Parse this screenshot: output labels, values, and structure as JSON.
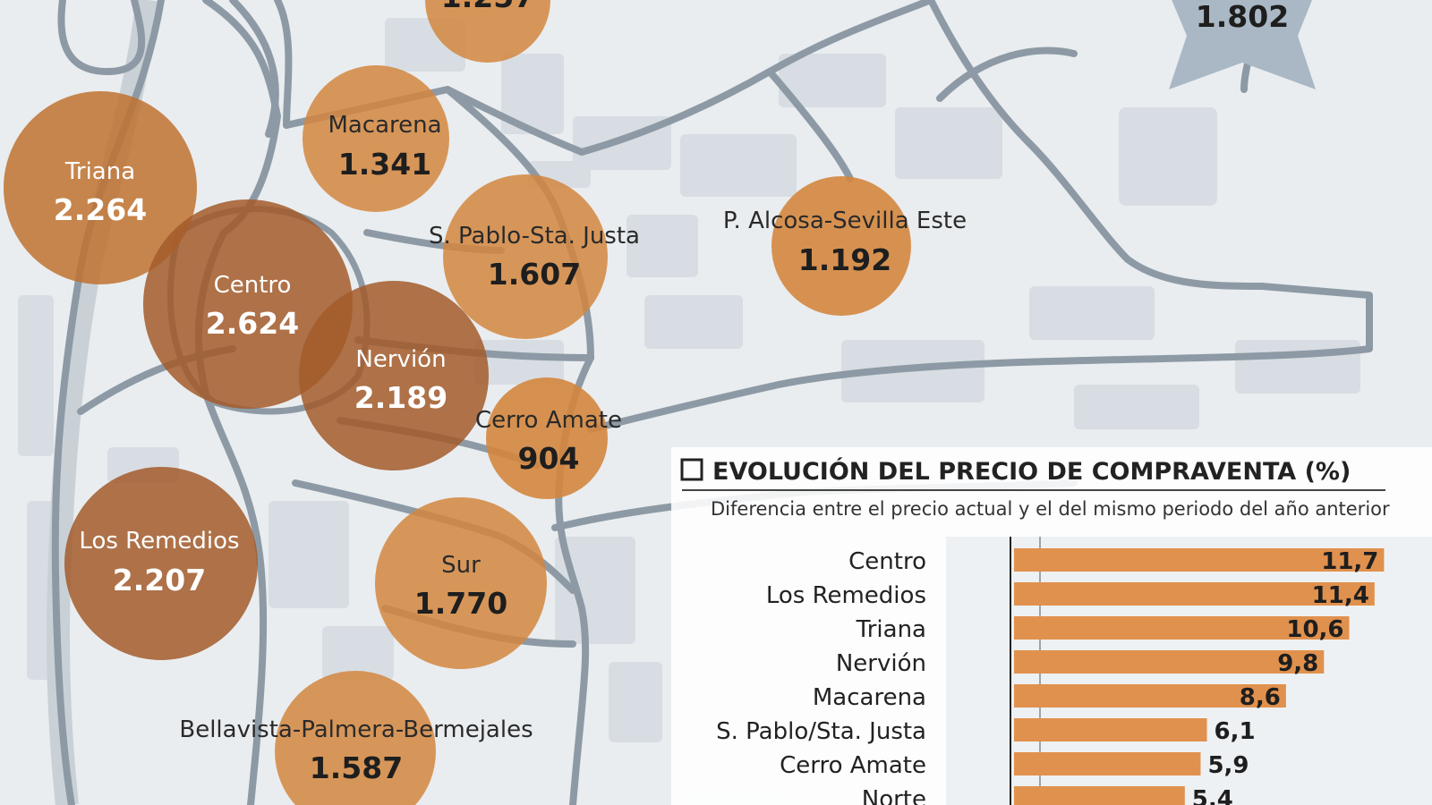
{
  "map": {
    "districts": [
      {
        "id": "norte-top",
        "name": "",
        "value": "1.257"
      },
      {
        "id": "macarena",
        "name": "Macarena",
        "value": "1.341"
      },
      {
        "id": "triana",
        "name": "Triana",
        "value": "2.264"
      },
      {
        "id": "centro",
        "name": "Centro",
        "value": "2.624"
      },
      {
        "id": "san-pablo",
        "name": "S. Pablo-Sta. Justa",
        "value": "1.607"
      },
      {
        "id": "alcosa",
        "name": "P. Alcosa-Sevilla Este",
        "value": "1.192"
      },
      {
        "id": "nervion",
        "name": "Nervión",
        "value": "2.189"
      },
      {
        "id": "cerro-amate",
        "name": "Cerro Amate",
        "value": "904"
      },
      {
        "id": "los-remedios",
        "name": "Los Remedios",
        "value": "2.207"
      },
      {
        "id": "sur",
        "name": "Sur",
        "value": "1.770"
      },
      {
        "id": "bellavista",
        "name": "Bellavista-Palmera-Bermejales",
        "value": "1.587"
      }
    ],
    "badge": {
      "value": "1.802"
    }
  },
  "chart_data": {
    "type": "bar",
    "title": "EVOLUCIÓN DEL PRECIO DE COMPRAVENTA (%)",
    "subtitle": "Diferencia entre el precio actual y el del mismo periodo del año anterior",
    "categories": [
      "Centro",
      "Los Remedios",
      "Triana",
      "Nervión",
      "Macarena",
      "S. Pablo/Sta. Justa",
      "Cerro Amate",
      "Norte"
    ],
    "values": [
      11.7,
      11.4,
      10.6,
      9.8,
      8.6,
      6.1,
      5.9,
      5.4
    ],
    "value_labels": [
      "11,7",
      "11,4",
      "10,6",
      "9,8",
      "8,6",
      "6,1",
      "5,9",
      "5,4"
    ],
    "orientation": "horizontal",
    "xlim": [
      0,
      12
    ],
    "colors": {
      "bar": "#e0914d",
      "circle": "#d4863e",
      "circle_dark": "#a35a2a",
      "road": "#8d9aa5",
      "badge": "#a9b8c4"
    }
  }
}
